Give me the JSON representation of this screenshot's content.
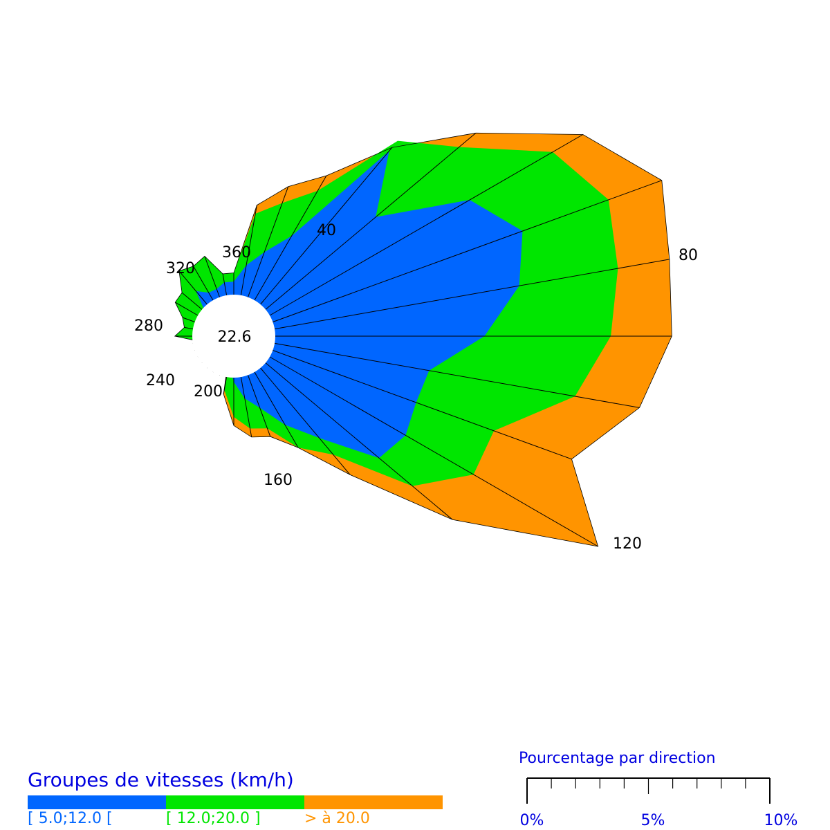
{
  "chart_data": {
    "type": "wind-rose",
    "direction_unit": "degrees",
    "calm_value": "22.6",
    "speed_groups_title": "Groupes de vitesses (km/h)",
    "speed_groups": [
      {
        "label": "[ 5.0;12.0 [",
        "color": "#0066ff"
      },
      {
        "label": "[ 12.0;20.0 ]",
        "color": "#00e600"
      },
      {
        "label": "> à 20.0",
        "color": "#ff9400"
      }
    ],
    "direction_labels": [
      "40",
      "80",
      "120",
      "160",
      "200",
      "240",
      "280",
      "320",
      "360"
    ],
    "directions": [
      10,
      20,
      30,
      40,
      50,
      60,
      70,
      80,
      90,
      100,
      110,
      120,
      130,
      140,
      150,
      160,
      170,
      180,
      190,
      200,
      210,
      220,
      230,
      240,
      250,
      260,
      270,
      280,
      290,
      300,
      310,
      320,
      330,
      340,
      350,
      360
    ],
    "cumulative_percent": [
      [
        0.7,
        1.1,
        1.7,
        4.6,
        3.3,
        5.3,
        6.1,
        5.7,
        4.8,
        3.6,
        3.5,
        3.6,
        3.4,
        2.1,
        1.4,
        0.8,
        0.5,
        0.1,
        -0.3,
        -0.5,
        -0.3,
        -0.2,
        -0.1,
        -0.3,
        -0.4,
        -0.4,
        -0.7,
        -0.6,
        -0.6,
        -0.4,
        -0.1,
        0.4,
        0.2,
        0.2,
        0.3,
        0.3
      ],
      [
        1.9,
        2.3,
        2.9,
        4.9,
        5.8,
        7.5,
        8.2,
        8.0,
        7.7,
        7.0,
        5.4,
        5.4,
        4.4,
        2.6,
        2.0,
        1.3,
        1.2,
        0.9,
        0.3,
        -0.7,
        -0.4,
        -0.4,
        -0.3,
        -0.2,
        -0.5,
        -0.2,
        0.4,
        0.2,
        0.3,
        0.6,
        0.6,
        1.0,
        0.9,
        1.0,
        0.5,
        0.5
      ],
      [
        2.1,
        2.7,
        3.3,
        4.7,
        6.3,
        8.3,
        9.5,
        9.2,
        9.1,
        8.5,
        7.3,
        8.7,
        5.6,
        3.2,
        2.0,
        1.5,
        1.4,
        1.1,
        0.4,
        -0.7,
        -0.4,
        -0.4,
        -0.3,
        -0.2,
        -0.5,
        -0.2,
        0.4,
        0.2,
        0.3,
        0.6,
        0.6,
        1.0,
        0.9,
        1.0,
        0.5,
        0.5
      ]
    ],
    "scale_title": "Pourcentage par direction",
    "scale_ticks": [
      "0%",
      "5%",
      "10%"
    ],
    "scale_max_percent": 10
  }
}
